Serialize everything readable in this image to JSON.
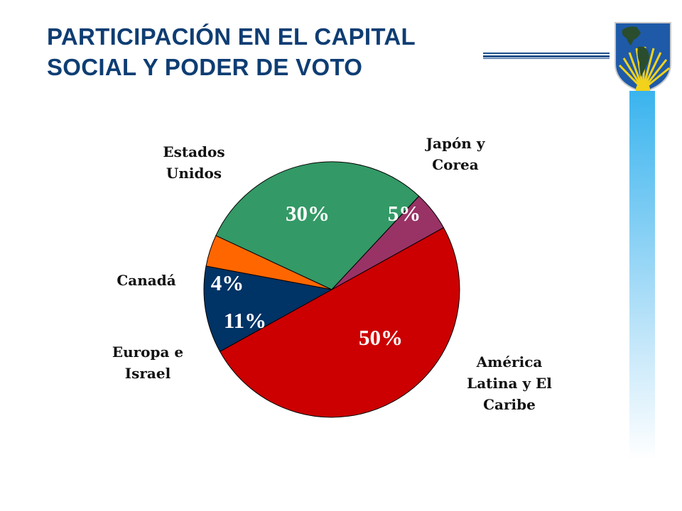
{
  "slide": {
    "title_line1": "PARTICIPACIÓN EN EL CAPITAL",
    "title_line2": "SOCIAL Y PODER DE VOTO"
  },
  "logo": {
    "icon": "americas-globe-sun-shield-icon",
    "colors": {
      "ocean": "#1e5aa8",
      "land": "#2a4d2e",
      "rays": "#f2d21b"
    }
  },
  "chart_data": {
    "type": "pie",
    "categories": [
      "América Latina y El Caribe",
      "Europa e Israel",
      "Canadá",
      "Estados Unidos",
      "Japón y Corea"
    ],
    "values": [
      50,
      11,
      4,
      30,
      5
    ],
    "value_labels": [
      "50%",
      "11%",
      "4%",
      "30%",
      "5%"
    ],
    "label_lines": [
      [
        "América",
        "Latina y El",
        "Caribe"
      ],
      [
        "Europa e",
        "Israel"
      ],
      [
        "Canadá"
      ],
      [
        "Estados",
        "Unidos"
      ],
      [
        "Japón y",
        "Corea"
      ]
    ],
    "colors": [
      "#cc0000",
      "#003366",
      "#ff6600",
      "#339966",
      "#993366"
    ],
    "value_label_colors": [
      "#ffffff",
      "#ffffff",
      "#ffffff",
      "#ffffff",
      "#ffffff"
    ],
    "title": "",
    "legend": "none"
  }
}
